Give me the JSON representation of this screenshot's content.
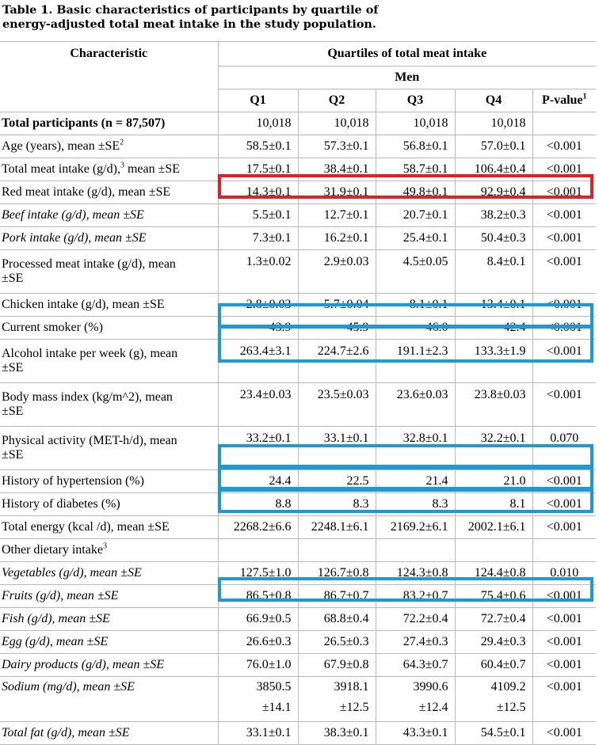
{
  "caption": {
    "line1": "Table 1.  Basic characteristics of participants by quartile of",
    "line2": "energy-adjusted total meat intake in the study population."
  },
  "header": {
    "characteristic": "Characteristic",
    "quartiles": "Quartiles of total meat intake",
    "sex": "Men",
    "q1": "Q1",
    "q2": "Q2",
    "q3": "Q3",
    "q4": "Q4",
    "pvalue": "P-value",
    "pvalue_sup": "1"
  },
  "rows": [
    {
      "label": "Total participants (n = 87,507)",
      "q1": "10,018",
      "q2": "10,018",
      "q3": "10,018",
      "q4": "10,018",
      "p": ""
    },
    {
      "label": "Age (years), mean ±SE",
      "sup": "2",
      "q1": "58.5±0.1",
      "q2": "57.3±0.1",
      "q3": "56.8±0.1",
      "q4": "57.0±0.1",
      "p": "<0.001"
    },
    {
      "label": "Total meat intake (g/d),",
      "sup": "3",
      "label2": " mean ±SE",
      "q1": "17.5±0.1",
      "q2": "38.4±0.1",
      "q3": "58.7±0.1",
      "q4": "106.4±0.4",
      "p": "<0.001"
    },
    {
      "label": "Red meat intake (g/d), mean ±SE",
      "q1": "14.3±0.1",
      "q2": "31.9±0.1",
      "q3": "49.8±0.1",
      "q4": "92.9±0.4",
      "p": "<0.001"
    },
    {
      "label": "Beef intake (g/d), mean ±SE",
      "q1": "5.5±0.1",
      "q2": "12.7±0.1",
      "q3": "20.7±0.1",
      "q4": "38.2±0.3",
      "p": "<0.001"
    },
    {
      "label": "Pork intake (g/d), mean ±SE",
      "q1": "7.3±0.1",
      "q2": "16.2±0.1",
      "q3": "25.4±0.1",
      "q4": "50.4±0.3",
      "p": "<0.001"
    },
    {
      "label": "Processed meat intake (g/d), mean",
      "label2": "±SE",
      "q1": "1.3±0.02",
      "q2": "2.9±0.03",
      "q3": "4.5±0.05",
      "q4": "8.4±0.1",
      "p": "<0.001"
    },
    {
      "label": "Chicken intake (g/d), mean ±SE",
      "q1": "2.8±0.03",
      "q2": "5.7±0.04",
      "q3": "8.1±0.1",
      "q4": "13.4±0.1",
      "p": "<0.001"
    },
    {
      "label": "Current smoker (%)",
      "q1": "43.9",
      "q2": "45.9",
      "q3": "46.0",
      "q4": "42.4",
      "p": "<0.001"
    },
    {
      "label": "Alcohol intake per week (g), mean",
      "label2": "±SE",
      "q1": "263.4±3.1",
      "q2": "224.7±2.6",
      "q3": "191.1±2.3",
      "q4": "133.3±1.9",
      "p": "<0.001"
    },
    {
      "label": "Body mass index (kg/m^2), mean",
      "label2": "±SE",
      "q1": "23.4±0.03",
      "q2": "23.5±0.03",
      "q3": "23.6±0.03",
      "q4": "23.8±0.03",
      "p": "<0.001"
    },
    {
      "label": "Physical activity (MET-h/d), mean",
      "label2": "±SE",
      "q1": "33.2±0.1",
      "q2": "33.1±0.1",
      "q3": "32.8±0.1",
      "q4": "32.2±0.1",
      "p": "0.070"
    },
    {
      "label": "History of hypertension (%)",
      "q1": "24.4",
      "q2": "22.5",
      "q3": "21.4",
      "q4": "21.0",
      "p": "<0.001"
    },
    {
      "label": "History of diabetes (%)",
      "q1": "8.8",
      "q2": "8.3",
      "q3": "8.3",
      "q4": "8.1",
      "p": "<0.001"
    },
    {
      "label": "Total energy (kcal /d), mean ±SE",
      "q1": "2268.2±6.6",
      "q2": "2248.1±6.1",
      "q3": "2169.2±6.1",
      "q4": "2002.1±6.1",
      "p": "<0.001"
    },
    {
      "label": "Other dietary intake",
      "sup": "3"
    },
    {
      "label": "Vegetables (g/d), mean ±SE",
      "q1": "127.5±1.0",
      "q2": "126.7±0.8",
      "q3": "124.3±0.8",
      "q4": "124.4±0.8",
      "p": "0.010"
    },
    {
      "label": "Fruits (g/d), mean ±SE",
      "q1": "86.5±0.8",
      "q2": "86.7±0.7",
      "q3": "83.2±0.7",
      "q4": "75.4±0.6",
      "p": "<0.001"
    },
    {
      "label": "Fish (g/d), mean ±SE",
      "q1": "66.9±0.5",
      "q2": "68.8±0.4",
      "q3": "72.2±0.4",
      "q4": "72.7±0.4",
      "p": "<0.001"
    },
    {
      "label": "Egg (g/d), mean ±SE",
      "q1": "26.6±0.3",
      "q2": "26.5±0.3",
      "q3": "27.4±0.3",
      "q4": "29.4±0.3",
      "p": "<0.001"
    },
    {
      "label": "Dairy products (g/d), mean ±SE",
      "q1": "76.0±1.0",
      "q2": "67.9±0.8",
      "q3": "64.3±0.7",
      "q4": "60.4±0.7",
      "p": "<0.001"
    },
    {
      "label": "Sodium (mg/d), mean ±SE",
      "q1a": "3850.5",
      "q1b": "±14.1",
      "q2a": "3918.1",
      "q2b": "±12.5",
      "q3a": "3990.6",
      "q3b": "±12.4",
      "q4a": "4109.2",
      "q4b": "±12.5",
      "p": "<0.001"
    },
    {
      "label": "Total fat (g/d), mean ±SE",
      "q1": "33.1±0.1",
      "q2": "38.3±0.1",
      "q3": "43.3±0.1",
      "q4": "54.5±0.1",
      "p": "<0.001"
    }
  ],
  "highlights": {
    "red": "#e21f26",
    "blue": "#1b9ad6"
  }
}
